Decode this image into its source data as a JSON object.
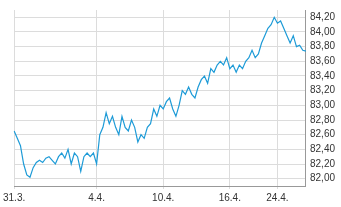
{
  "chart_data": {
    "type": "line",
    "color": "#1e9bd7",
    "grid": true,
    "categories": [
      "31.3.",
      null,
      null,
      null,
      null,
      null,
      null,
      null,
      null,
      null,
      null,
      null,
      null,
      null,
      null,
      null,
      null,
      null,
      null,
      null,
      null,
      null,
      null,
      null,
      null,
      null,
      "4.4.",
      null,
      null,
      null,
      null,
      null,
      null,
      null,
      null,
      null,
      null,
      null,
      null,
      null,
      null,
      null,
      null,
      null,
      null,
      null,
      null,
      "10.4.",
      null,
      null,
      null,
      null,
      null,
      null,
      null,
      null,
      null,
      null,
      null,
      null,
      null,
      null,
      null,
      null,
      null,
      null,
      null,
      null,
      "16.4.",
      null,
      null,
      null,
      null,
      null,
      null,
      null,
      null,
      null,
      null,
      null,
      null,
      null,
      null,
      "24.4.",
      null,
      null,
      null,
      null,
      null,
      null,
      null,
      null,
      null
    ],
    "values": [
      82.65,
      82.55,
      82.45,
      82.2,
      82.05,
      82.02,
      82.15,
      82.22,
      82.25,
      82.22,
      82.28,
      82.3,
      82.25,
      82.2,
      82.3,
      82.35,
      82.28,
      82.4,
      82.2,
      82.35,
      82.3,
      82.1,
      82.3,
      82.35,
      82.3,
      82.35,
      82.2,
      82.6,
      82.7,
      82.9,
      82.75,
      82.85,
      82.7,
      82.6,
      82.85,
      82.7,
      82.65,
      82.8,
      82.7,
      82.5,
      82.6,
      82.55,
      82.7,
      82.75,
      82.95,
      82.85,
      83.0,
      82.95,
      83.05,
      83.1,
      82.95,
      82.85,
      83.0,
      83.2,
      83.15,
      83.25,
      83.15,
      83.1,
      83.25,
      83.35,
      83.4,
      83.3,
      83.5,
      83.45,
      83.55,
      83.6,
      83.55,
      83.65,
      83.5,
      83.55,
      83.45,
      83.55,
      83.5,
      83.6,
      83.65,
      83.75,
      83.65,
      83.7,
      83.85,
      83.95,
      84.05,
      84.1,
      84.2,
      84.12,
      84.15,
      84.05,
      83.95,
      83.85,
      83.95,
      83.8,
      83.82,
      83.75,
      83.74
    ],
    "ylim": [
      81.9,
      84.3
    ],
    "yticks": [
      {
        "value": 82.0,
        "label": "82,00"
      },
      {
        "value": 82.2,
        "label": "82,20"
      },
      {
        "value": 82.4,
        "label": "82,40"
      },
      {
        "value": 82.6,
        "label": "82,60"
      },
      {
        "value": 82.8,
        "label": "82,80"
      },
      {
        "value": 83.0,
        "label": "83,00"
      },
      {
        "value": 83.2,
        "label": "83,20"
      },
      {
        "value": 83.4,
        "label": "83,40"
      },
      {
        "value": 83.6,
        "label": "83,60"
      },
      {
        "value": 83.8,
        "label": "83,80"
      },
      {
        "value": 84.0,
        "label": "84,00"
      },
      {
        "value": 84.2,
        "label": "84,20"
      }
    ]
  }
}
